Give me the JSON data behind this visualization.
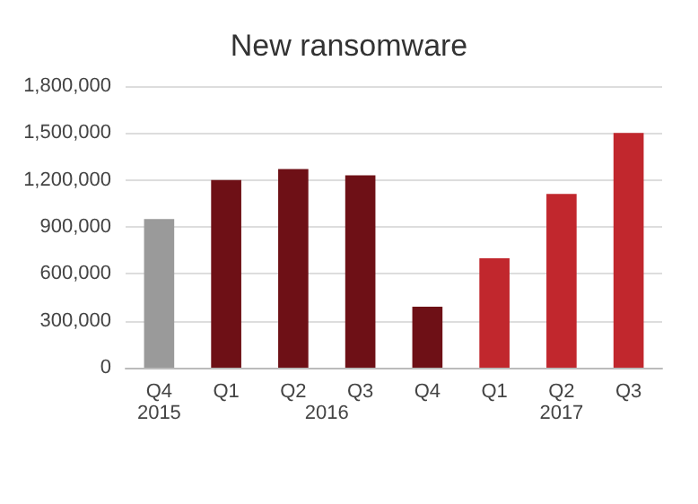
{
  "chart_data": {
    "type": "bar",
    "title": "New ransomware",
    "categories": [
      "Q4",
      "Q1",
      "Q2",
      "Q3",
      "Q4",
      "Q1",
      "Q2",
      "Q3"
    ],
    "values": [
      950000,
      1200000,
      1270000,
      1230000,
      390000,
      700000,
      1110000,
      1500000
    ],
    "colors": [
      "#9a9a9a",
      "#6e1016",
      "#6e1016",
      "#6e1016",
      "#6e1016",
      "#c1272d",
      "#c1272d",
      "#c1272d"
    ],
    "ylim": [
      0,
      1800000
    ],
    "yticks": [
      0,
      {
        "value": 300000,
        "label": "300,000"
      },
      {
        "value": 600000,
        "label": "600,000"
      },
      {
        "value": 900000,
        "label": "900,000"
      },
      {
        "value": 1200000,
        "label": "1,200,000"
      },
      {
        "value": 1500000,
        "label": "1,500,000"
      },
      {
        "value": 1800000,
        "label": "1,800,000"
      }
    ],
    "grid": "y",
    "annotations": [
      "2015",
      "2016",
      "2017"
    ]
  }
}
